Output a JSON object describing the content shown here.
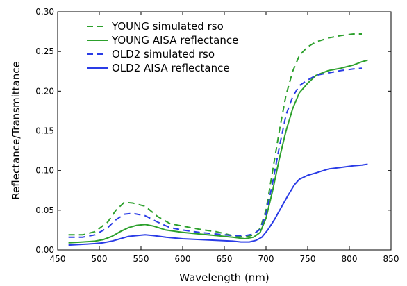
{
  "chart_data": {
    "type": "line",
    "xlabel": "Wavelength (nm)",
    "ylabel": "Reflectance/Transmittance",
    "xlim": [
      450,
      850
    ],
    "ylim": [
      0.0,
      0.3
    ],
    "x_ticks": [
      "450",
      "500",
      "550",
      "600",
      "650",
      "700",
      "750",
      "800",
      "850"
    ],
    "y_ticks": [
      "0.00",
      "0.05",
      "0.10",
      "0.15",
      "0.20",
      "0.25",
      "0.30"
    ],
    "grid": false,
    "legend_position": "upper-left",
    "series": [
      {
        "name": "YOUNG simulated rso",
        "color": "#2ca02c",
        "dash": "dashed",
        "x": [
          463,
          480,
          495,
          510,
          520,
          530,
          540,
          555,
          570,
          585,
          600,
          620,
          640,
          660,
          675,
          685,
          693,
          700,
          708,
          716,
          724,
          732,
          740,
          750,
          760,
          775,
          790,
          805,
          815
        ],
        "y": [
          0.019,
          0.019,
          0.023,
          0.035,
          0.05,
          0.06,
          0.059,
          0.055,
          0.042,
          0.033,
          0.03,
          0.026,
          0.023,
          0.018,
          0.016,
          0.019,
          0.027,
          0.05,
          0.1,
          0.15,
          0.195,
          0.225,
          0.245,
          0.256,
          0.262,
          0.267,
          0.27,
          0.272,
          0.272
        ]
      },
      {
        "name": "YOUNG AISA reflectance",
        "color": "#2ca02c",
        "dash": "solid",
        "x": [
          463,
          480,
          495,
          505,
          515,
          525,
          535,
          545,
          555,
          565,
          580,
          600,
          620,
          640,
          660,
          675,
          685,
          693,
          700,
          708,
          716,
          724,
          732,
          740,
          750,
          760,
          775,
          790,
          805,
          815,
          822
        ],
        "y": [
          0.009,
          0.01,
          0.011,
          0.013,
          0.017,
          0.023,
          0.028,
          0.031,
          0.032,
          0.03,
          0.025,
          0.022,
          0.02,
          0.018,
          0.016,
          0.014,
          0.016,
          0.022,
          0.04,
          0.075,
          0.115,
          0.15,
          0.178,
          0.198,
          0.21,
          0.22,
          0.226,
          0.229,
          0.233,
          0.237,
          0.239
        ]
      },
      {
        "name": "OLD2 simulated rso",
        "color": "#2a3ce6",
        "dash": "dashed",
        "x": [
          463,
          480,
          495,
          510,
          520,
          530,
          540,
          555,
          570,
          585,
          600,
          620,
          640,
          660,
          675,
          685,
          693,
          700,
          708,
          716,
          724,
          732,
          740,
          750,
          760,
          775,
          790,
          805,
          815
        ],
        "y": [
          0.016,
          0.016,
          0.019,
          0.028,
          0.038,
          0.045,
          0.046,
          0.043,
          0.035,
          0.028,
          0.025,
          0.022,
          0.02,
          0.018,
          0.018,
          0.02,
          0.026,
          0.045,
          0.085,
          0.13,
          0.17,
          0.193,
          0.207,
          0.214,
          0.22,
          0.223,
          0.226,
          0.228,
          0.229
        ]
      },
      {
        "name": "OLD2 AISA reflectance",
        "color": "#2a3ce6",
        "dash": "solid",
        "x": [
          463,
          480,
          495,
          505,
          515,
          525,
          535,
          545,
          555,
          565,
          580,
          600,
          620,
          640,
          660,
          670,
          680,
          688,
          695,
          702,
          710,
          718,
          726,
          734,
          740,
          750,
          760,
          775,
          790,
          805,
          815,
          822
        ],
        "y": [
          0.006,
          0.007,
          0.008,
          0.009,
          0.011,
          0.014,
          0.017,
          0.018,
          0.019,
          0.018,
          0.016,
          0.014,
          0.013,
          0.012,
          0.011,
          0.01,
          0.01,
          0.012,
          0.016,
          0.025,
          0.038,
          0.053,
          0.068,
          0.082,
          0.089,
          0.094,
          0.097,
          0.102,
          0.104,
          0.106,
          0.107,
          0.108
        ]
      }
    ]
  }
}
